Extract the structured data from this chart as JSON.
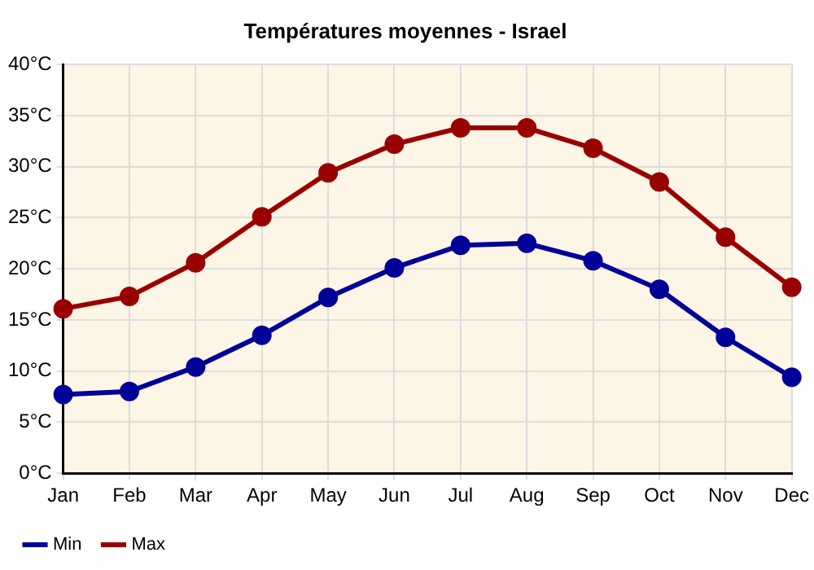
{
  "chart_data": {
    "type": "line",
    "title": "Températures moyennes - Israel",
    "categories": [
      "Jan",
      "Feb",
      "Mar",
      "Apr",
      "May",
      "Jun",
      "Jul",
      "Aug",
      "Sep",
      "Oct",
      "Nov",
      "Dec"
    ],
    "series": [
      {
        "name": "Min",
        "color": "#000099",
        "values": [
          7.7,
          8.0,
          10.4,
          13.5,
          17.2,
          20.1,
          22.3,
          22.5,
          20.8,
          18.0,
          13.3,
          9.4
        ]
      },
      {
        "name": "Max",
        "color": "#990000",
        "values": [
          16.1,
          17.3,
          20.6,
          25.1,
          29.4,
          32.2,
          33.8,
          33.8,
          31.8,
          28.5,
          23.1,
          18.2
        ]
      }
    ],
    "ylim": [
      0,
      40
    ],
    "yticks": [
      {
        "value": 0,
        "label": "0°C"
      },
      {
        "value": 5,
        "label": "5°C"
      },
      {
        "value": 10,
        "label": "10°C"
      },
      {
        "value": 15,
        "label": "15°C"
      },
      {
        "value": 20,
        "label": "20°C"
      },
      {
        "value": 25,
        "label": "25°C"
      },
      {
        "value": 30,
        "label": "30°C"
      },
      {
        "value": 35,
        "label": "35°C"
      },
      {
        "value": 40,
        "label": "40°C"
      }
    ],
    "grid": true,
    "legend": "bottom left",
    "marker": "circle",
    "line_style": "solid"
  }
}
